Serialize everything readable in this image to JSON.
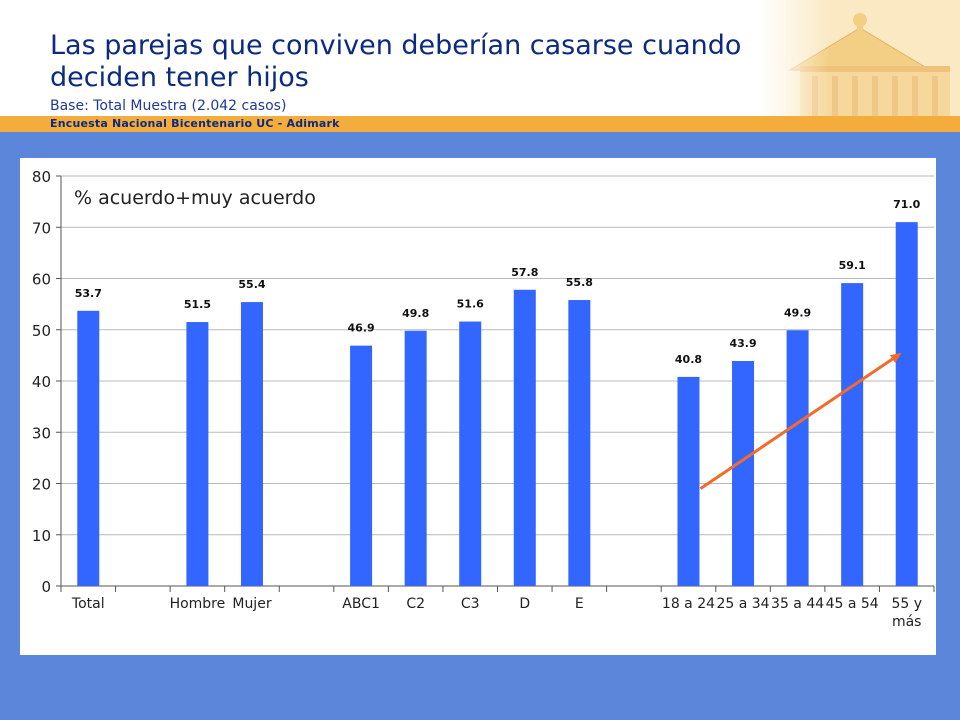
{
  "header": {
    "title_line1": "Las parejas que conviven deberían casarse cuando",
    "title_line2": "deciden tener hijos",
    "subtitle": "Base: Total Muestra (2.042 casos)",
    "band": "Encuesta Nacional Bicentenario UC - Adimark"
  },
  "colors": {
    "background": "#5b86d9",
    "band": "#f4ad3c",
    "bar": "#3366ff",
    "trend": "#f26b2a",
    "title": "#0b2a80"
  },
  "chart_data": {
    "type": "bar",
    "annotation": "% acuerdo+muy acuerdo",
    "categories": [
      "Total",
      "",
      "Hombre",
      "Mujer",
      "",
      "ABC1",
      "C2",
      "C3",
      "D",
      "E",
      "",
      "18 a 24",
      "25 a 34",
      "35 a 44",
      "45 a 54",
      "55 y más"
    ],
    "values": [
      53.7,
      null,
      51.5,
      55.4,
      null,
      46.9,
      49.8,
      51.6,
      57.8,
      55.8,
      null,
      40.8,
      43.9,
      49.9,
      59.1,
      71.0
    ],
    "value_labels": [
      "53.7",
      "",
      "51.5",
      "55.4",
      "",
      "46.9",
      "49.8",
      "51.6",
      "57.8",
      "55.8",
      "",
      "40.8",
      "43.9",
      "49.9",
      "59.1",
      "71.0"
    ],
    "ylim": [
      0,
      80
    ],
    "yticks": [
      "0",
      "10",
      "20",
      "30",
      "40",
      "50",
      "60",
      "70",
      "80"
    ],
    "grid": true,
    "trend_line": {
      "from": {
        "category": "18 a 24",
        "y": 19
      },
      "to": {
        "category": "55 y más",
        "y": 45.5
      }
    }
  }
}
